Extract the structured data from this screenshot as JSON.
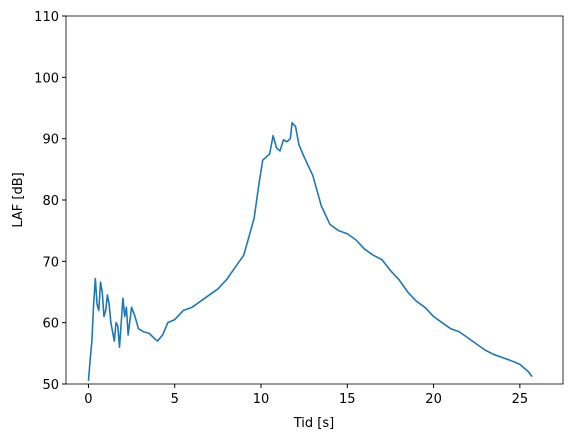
{
  "chart_data": {
    "type": "line",
    "xlabel": "Tid [s]",
    "ylabel": "LAF [dB]",
    "x": [
      0,
      0.1,
      0.2,
      0.3,
      0.4,
      0.5,
      0.6,
      0.7,
      0.8,
      0.9,
      1.0,
      1.1,
      1.2,
      1.3,
      1.5,
      1.6,
      1.7,
      1.8,
      2.0,
      2.1,
      2.2,
      2.3,
      2.5,
      2.7,
      2.9,
      3.2,
      3.5,
      3.8,
      4.0,
      4.3,
      4.6,
      5.0,
      5.5,
      6.0,
      6.5,
      7.0,
      7.5,
      8.0,
      8.5,
      9.0,
      9.3,
      9.6,
      9.9,
      10.1,
      10.3,
      10.5,
      10.7,
      10.9,
      11.1,
      11.3,
      11.5,
      11.7,
      11.8,
      12.0,
      12.2,
      12.5,
      13.0,
      13.5,
      14.0,
      14.5,
      15.0,
      15.5,
      16.0,
      16.5,
      17.0,
      17.5,
      18.0,
      18.5,
      19.0,
      19.5,
      20.0,
      20.5,
      21.0,
      21.5,
      22.0,
      22.5,
      23.0,
      23.5,
      24.0,
      24.5,
      25.0,
      25.5,
      25.7
    ],
    "series": [
      {
        "color": "#1f77b4",
        "values": [
          50.5,
          54,
          57,
          63,
          67.2,
          63,
          62,
          66.6,
          65,
          61,
          62,
          64.5,
          63,
          60,
          57,
          60,
          59.5,
          56,
          64,
          61,
          62.5,
          58,
          62.5,
          61,
          59,
          58.5,
          58.3,
          57.5,
          57,
          58,
          60,
          60.5,
          62,
          62.5,
          63.5,
          64.5,
          65.5,
          67,
          69,
          71,
          74,
          77,
          83,
          86.5,
          87,
          87.5,
          90.5,
          88.5,
          88,
          89.8,
          89.5,
          90,
          92.6,
          92,
          89,
          87,
          84,
          79,
          76,
          75,
          74.5,
          73.5,
          72,
          71,
          70.3,
          68.5,
          67,
          65,
          63.5,
          62.5,
          61,
          60,
          59,
          58.5,
          57.5,
          56.5,
          55.5,
          54.8,
          54.3,
          53.8,
          53.2,
          52,
          51.2
        ]
      }
    ],
    "xlim": [
      -1.3,
      27.5
    ],
    "ylim": [
      50,
      110
    ],
    "xticks": [
      0,
      5,
      10,
      15,
      20,
      25
    ],
    "yticks": [
      50,
      60,
      70,
      80,
      90,
      100,
      110
    ],
    "grid": false
  }
}
